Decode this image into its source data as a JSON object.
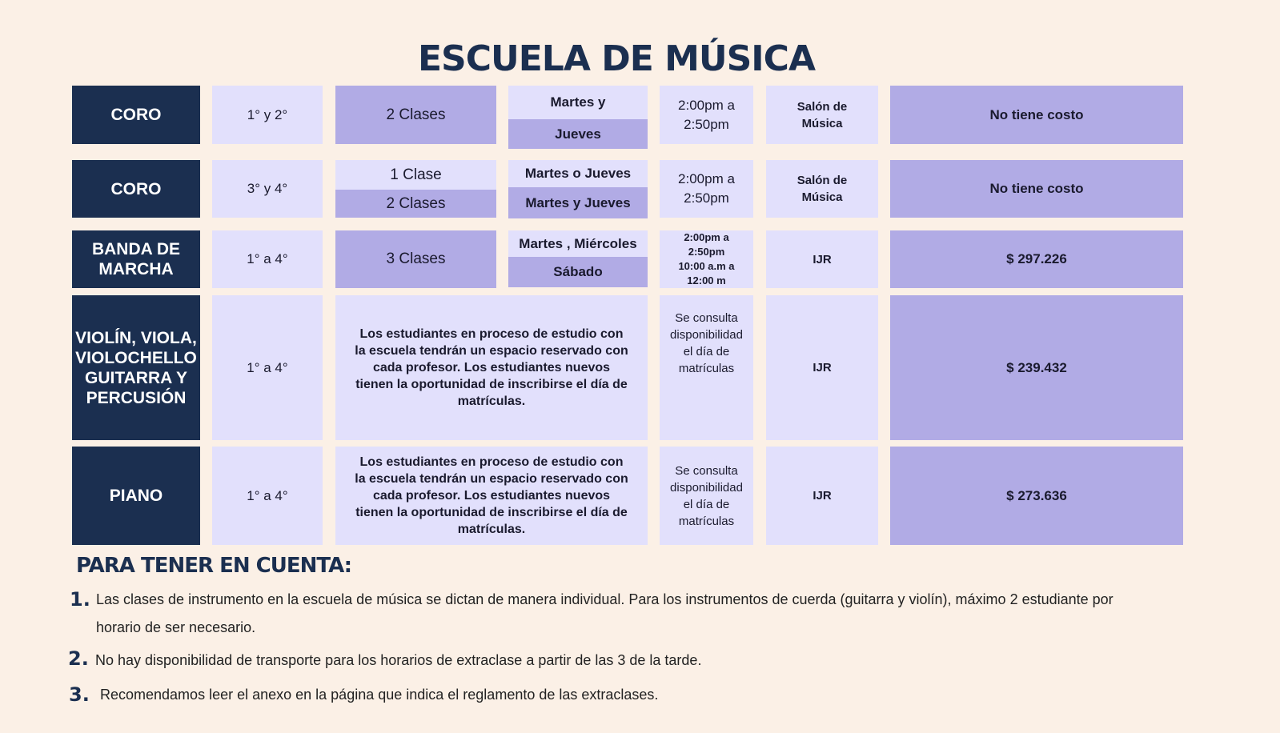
{
  "title": "ESCUELA DE MÚSICA",
  "rows": [
    {
      "program": "CORO",
      "grades": "1° y 2°",
      "classes": "2 Clases",
      "days_top": "Martes y",
      "days_bottom": "Jueves",
      "time": "2:00pm a 2:50pm",
      "place": "Salón de Música",
      "cost": "No tiene costo"
    },
    {
      "program": "CORO",
      "grades": "3° y 4°",
      "classes_top": "1 Clase",
      "classes_bottom": "2 Clases",
      "days_top": "Martes o Jueves",
      "days_bottom": "Martes y Jueves",
      "time": "2:00pm a 2:50pm",
      "place": "Salón de Música",
      "cost": "No tiene costo"
    },
    {
      "program": "BANDA DE MARCHA",
      "grades": "1° a 4°",
      "classes": "3 Clases",
      "days_top": "Martes , Miércoles",
      "days_bottom": "Sábado",
      "time_1": "2:00pm a",
      "time_2": "2:50pm",
      "time_3": "10:00 a.m a",
      "time_4": "12:00 m",
      "place": "IJR",
      "cost": "$ 297.226"
    },
    {
      "program": "VIOLÍN, VIOLA, VIOLOCHELLO GUITARRA Y PERCUSIÓN",
      "grades": "1° a 4°",
      "description": "Los estudiantes en proceso de estudio con la escuela tendrán un espacio reservado con cada profesor. Los estudiantes nuevos tienen la oportunidad de inscribirse el día de matrículas.",
      "time": "Se consulta disponibilidad el día de matrículas",
      "place": "IJR",
      "cost": "$ 239.432"
    },
    {
      "program": "PIANO",
      "grades": "1° a 4°",
      "description": "Los estudiantes en proceso de estudio con la escuela tendrán un espacio reservado con cada profesor. Los estudiantes nuevos tienen la oportunidad de inscribirse el día de matrículas.",
      "time": "Se consulta disponibilidad el día de matrículas",
      "place": "IJR",
      "cost": "$ 273.636"
    }
  ],
  "notes_heading": "PARA TENER EN CUENTA:",
  "notes": [
    {
      "num": "1.",
      "text": "Las clases de instrumento en la escuela de música se dictan de manera individual. Para los instrumentos de cuerda (guitarra y violín), máximo 2 estudiante por horario de ser necesario."
    },
    {
      "num": "2.",
      "text": "No hay disponibilidad de transporte para los horarios de extraclase a partir de las 3 de la tarde."
    },
    {
      "num": "3.",
      "text": "Recomendamos leer el anexo en la página que indica el reglamento de las extraclases."
    }
  ],
  "colors": {
    "background": "#fbf0e6",
    "navy": "#1b2f50",
    "light": "#e2e0fc",
    "medium": "#b1abe5"
  }
}
